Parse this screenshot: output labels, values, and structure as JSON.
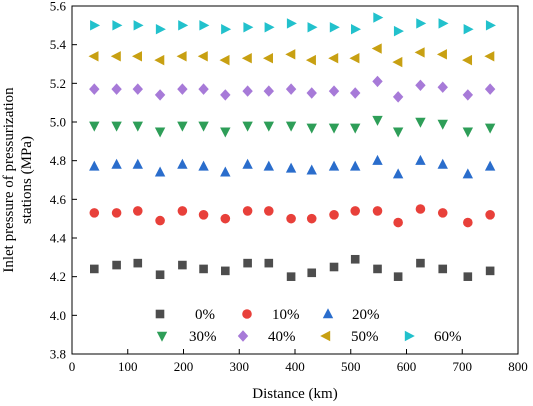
{
  "chart_data": {
    "type": "scatter",
    "title": "",
    "xlabel": "Distance (km)",
    "ylabel_lines": [
      "Inlet pressure of pressurization",
      "stations (MPa)"
    ],
    "xlim": [
      0,
      800
    ],
    "ylim": [
      3.8,
      5.6
    ],
    "x_ticks": [
      "0",
      "100",
      "200",
      "300",
      "400",
      "500",
      "600",
      "700",
      "800"
    ],
    "y_ticks": [
      "3.8",
      "4.0",
      "4.2",
      "4.4",
      "4.6",
      "4.8",
      "5.0",
      "5.2",
      "5.4",
      "5.6"
    ],
    "grid": false,
    "legend_placement": "bottom-center",
    "x": [
      40,
      80,
      118,
      158,
      198,
      236,
      275,
      315,
      353,
      393,
      430,
      470,
      508,
      548,
      585,
      625,
      665,
      710,
      750
    ],
    "series": [
      {
        "name": "0%",
        "marker": "square",
        "color": "#4d4d4d",
        "values": [
          4.24,
          4.26,
          4.27,
          4.21,
          4.26,
          4.24,
          4.23,
          4.27,
          4.27,
          4.2,
          4.22,
          4.25,
          4.29,
          4.24,
          4.2,
          4.27,
          4.24,
          4.2,
          4.23
        ]
      },
      {
        "name": "10%",
        "marker": "circle",
        "color": "#e8403a",
        "values": [
          4.53,
          4.53,
          4.54,
          4.49,
          4.54,
          4.52,
          4.5,
          4.54,
          4.54,
          4.5,
          4.5,
          4.52,
          4.54,
          4.54,
          4.48,
          4.55,
          4.53,
          4.48,
          4.52
        ]
      },
      {
        "name": "20%",
        "marker": "triangle-up",
        "color": "#2a6dcc",
        "values": [
          4.77,
          4.78,
          4.78,
          4.74,
          4.78,
          4.77,
          4.74,
          4.78,
          4.77,
          4.76,
          4.75,
          4.77,
          4.77,
          4.8,
          4.73,
          4.8,
          4.78,
          4.73,
          4.77
        ]
      },
      {
        "name": "30%",
        "marker": "triangle-down",
        "color": "#2e9e58",
        "values": [
          4.98,
          4.98,
          4.98,
          4.95,
          4.98,
          4.98,
          4.95,
          4.98,
          4.98,
          4.98,
          4.97,
          4.97,
          4.97,
          5.01,
          4.95,
          5.0,
          4.99,
          4.95,
          4.97
        ]
      },
      {
        "name": "40%",
        "marker": "diamond",
        "color": "#a77ad8",
        "values": [
          5.17,
          5.17,
          5.17,
          5.14,
          5.17,
          5.17,
          5.14,
          5.16,
          5.16,
          5.17,
          5.15,
          5.16,
          5.15,
          5.21,
          5.13,
          5.19,
          5.18,
          5.14,
          5.17
        ]
      },
      {
        "name": "50%",
        "marker": "triangle-left",
        "color": "#c8a012",
        "values": [
          5.34,
          5.34,
          5.34,
          5.32,
          5.34,
          5.34,
          5.32,
          5.33,
          5.33,
          5.35,
          5.32,
          5.33,
          5.33,
          5.38,
          5.31,
          5.36,
          5.35,
          5.32,
          5.34
        ]
      },
      {
        "name": "60%",
        "marker": "triangle-right",
        "color": "#22c1cc",
        "values": [
          5.5,
          5.5,
          5.5,
          5.48,
          5.5,
          5.5,
          5.48,
          5.49,
          5.49,
          5.51,
          5.49,
          5.49,
          5.48,
          5.54,
          5.47,
          5.51,
          5.51,
          5.48,
          5.5
        ]
      }
    ]
  }
}
